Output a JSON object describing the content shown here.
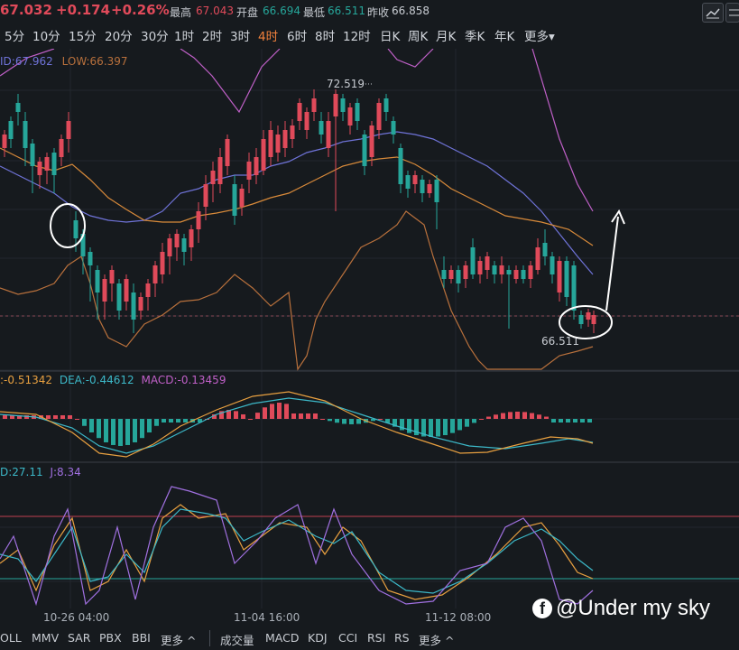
{
  "header": {
    "last_price": "67.032",
    "change": "+0.174",
    "change_pct": "+0.26%",
    "high_label": "最高",
    "high_value": "67.043",
    "open_label": "开盘",
    "open_value": "66.694",
    "low_label": "最低",
    "low_value": "66.511",
    "prev_close_label": "昨收",
    "prev_close_value": "66.858",
    "icons": [
      "chart-type-icon",
      "settings-icon"
    ]
  },
  "timeframes": [
    "5分",
    "10分",
    "15分",
    "20分",
    "30分",
    "1时",
    "2时",
    "3时",
    "4时",
    "6时",
    "8时",
    "12时",
    "日K",
    "周K",
    "月K",
    "季K",
    "年K",
    "更多▾"
  ],
  "active_timeframe": "4时",
  "boll_legend": {
    "mid": "ID:67.962",
    "low": "LOW:66.397"
  },
  "price_annotations": {
    "high": "72.519",
    "low": "66.511"
  },
  "macd_legend": {
    "dif": "-0.51342",
    "dea": "DEA:-0.44612",
    "macd": "MACD:-0.13459"
  },
  "kdj_legend": {
    "d": "D:27.11",
    "j": "J:8.34"
  },
  "time_axis": [
    "10-26 04:00",
    "11-04 16:00",
    "11-12 08:00"
  ],
  "watermark": "@Under my sky",
  "indicator_bar": {
    "main": [
      "OLL",
      "MMV",
      "SAR",
      "PBX",
      "BBI",
      "更多 ^"
    ],
    "sub": [
      "成交量",
      "MACD",
      "KDJ",
      "CCI",
      "RSI",
      "RS",
      "更多 ^"
    ]
  },
  "colors": {
    "up": "#e04a5a",
    "down": "#26a69a",
    "mid": "#6f73d8",
    "lower": "#b8703c",
    "upper": "#c060c8",
    "ma": "#d88a3a",
    "active": "#f0803c",
    "dea": "#3cb8c8",
    "dif": "#e8a040",
    "kdj_k": "#e8a040",
    "kdj_d": "#3cb8c8",
    "kdj_j": "#a070e0"
  }
}
